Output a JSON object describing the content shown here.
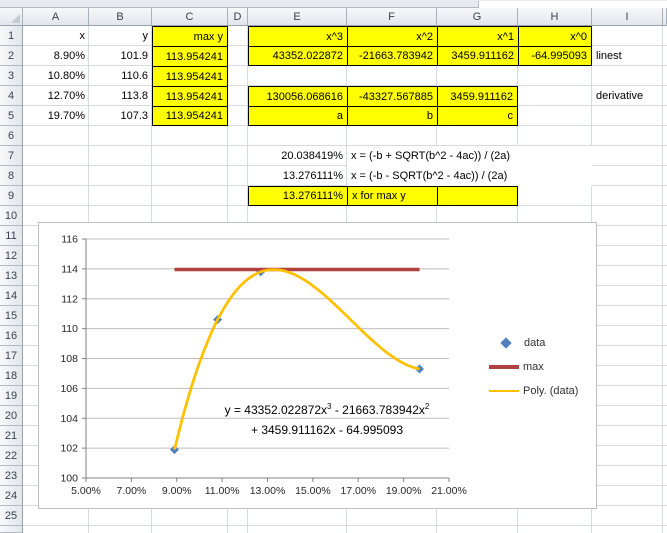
{
  "sheet": {
    "column_letters": [
      "",
      "A",
      "B",
      "C",
      "D",
      "E",
      "F",
      "G",
      "H",
      "I",
      ""
    ],
    "row_numbers": [
      "1",
      "2",
      "3",
      "4",
      "5",
      "6",
      "7",
      "8",
      "9",
      "10",
      "11",
      "12",
      "13",
      "14",
      "15",
      "16",
      "17",
      "18",
      "19",
      "20",
      "21",
      "22",
      "23",
      "24",
      "25",
      ""
    ],
    "cells": [
      {
        "r": 1,
        "c": "A",
        "v": "x",
        "a": "r"
      },
      {
        "r": 1,
        "c": "B",
        "v": "y",
        "a": "r"
      },
      {
        "r": 1,
        "c": "C",
        "v": "max y",
        "a": "r",
        "f": "y",
        "b": "tlr"
      },
      {
        "r": 1,
        "c": "E",
        "v": "x^3",
        "a": "r",
        "f": "y",
        "b": "tl"
      },
      {
        "r": 1,
        "c": "F",
        "v": "x^2",
        "a": "r",
        "f": "y",
        "b": "tl"
      },
      {
        "r": 1,
        "c": "G",
        "v": "x^1",
        "a": "r",
        "f": "y",
        "b": "tl"
      },
      {
        "r": 1,
        "c": "H",
        "v": "x^0",
        "a": "r",
        "f": "y",
        "b": "tlr"
      },
      {
        "r": 2,
        "c": "A",
        "v": "8.90%",
        "a": "r"
      },
      {
        "r": 2,
        "c": "B",
        "v": "101.9",
        "a": "r"
      },
      {
        "r": 2,
        "c": "C",
        "v": "113.954241",
        "a": "r",
        "f": "y",
        "b": "tlr"
      },
      {
        "r": 2,
        "c": "E",
        "v": "43352.022872",
        "a": "r",
        "f": "y",
        "b": "tlb"
      },
      {
        "r": 2,
        "c": "F",
        "v": "-21663.783942",
        "a": "r",
        "f": "y",
        "b": "tlb"
      },
      {
        "r": 2,
        "c": "G",
        "v": "3459.911162",
        "a": "r",
        "f": "y",
        "b": "tlb"
      },
      {
        "r": 2,
        "c": "H",
        "v": "-64.995093",
        "a": "r",
        "f": "y",
        "b": "tlrb"
      },
      {
        "r": 2,
        "c": "I",
        "v": "linest",
        "a": "l"
      },
      {
        "r": 3,
        "c": "A",
        "v": "10.80%",
        "a": "r"
      },
      {
        "r": 3,
        "c": "B",
        "v": "110.6",
        "a": "r"
      },
      {
        "r": 3,
        "c": "C",
        "v": "113.954241",
        "a": "r",
        "f": "y",
        "b": "tlr"
      },
      {
        "r": 4,
        "c": "A",
        "v": "12.70%",
        "a": "r"
      },
      {
        "r": 4,
        "c": "B",
        "v": "113.8",
        "a": "r"
      },
      {
        "r": 4,
        "c": "C",
        "v": "113.954241",
        "a": "r",
        "f": "y",
        "b": "tlr"
      },
      {
        "r": 4,
        "c": "E",
        "v": "130056.068616",
        "a": "r",
        "f": "y",
        "b": "tl"
      },
      {
        "r": 4,
        "c": "F",
        "v": "-43327.567885",
        "a": "r",
        "f": "y",
        "b": "tl"
      },
      {
        "r": 4,
        "c": "G",
        "v": "3459.911162",
        "a": "r",
        "f": "y",
        "b": "tlr"
      },
      {
        "r": 4,
        "c": "I",
        "v": "derivative",
        "a": "l"
      },
      {
        "r": 5,
        "c": "A",
        "v": "19.70%",
        "a": "r"
      },
      {
        "r": 5,
        "c": "B",
        "v": "107.3",
        "a": "r"
      },
      {
        "r": 5,
        "c": "C",
        "v": "113.954241",
        "a": "r",
        "f": "y",
        "b": "tlrb"
      },
      {
        "r": 5,
        "c": "E",
        "v": "a",
        "a": "r",
        "f": "y",
        "b": "tlb"
      },
      {
        "r": 5,
        "c": "F",
        "v": "b",
        "a": "r",
        "f": "y",
        "b": "tlb"
      },
      {
        "r": 5,
        "c": "G",
        "v": "c",
        "a": "r",
        "f": "y",
        "b": "tlrb"
      },
      {
        "r": 7,
        "c": "E",
        "v": "20.038419%",
        "a": "r"
      },
      {
        "r": 7,
        "c": "F",
        "v": "x = (-b + SQRT(b^2 - 4ac)) / (2a)",
        "a": "l",
        "wide": true
      },
      {
        "r": 8,
        "c": "E",
        "v": "13.276111%",
        "a": "r"
      },
      {
        "r": 8,
        "c": "F",
        "v": "x = (-b - SQRT(b^2 - 4ac)) / (2a)",
        "a": "l",
        "wide": true
      },
      {
        "r": 9,
        "c": "E",
        "v": "13.276111%",
        "a": "r",
        "f": "y",
        "b": "tlb"
      },
      {
        "r": 9,
        "c": "F",
        "v": "x for max y",
        "a": "l",
        "f": "y",
        "b": "tlb"
      },
      {
        "r": 9,
        "c": "G",
        "v": "",
        "a": "l",
        "f": "y",
        "b": "tlrb"
      }
    ]
  },
  "chart_data": {
    "type": "scatter",
    "x_axis": {
      "min": 0.05,
      "max": 0.21,
      "tick_step": 0.02,
      "labels": [
        "5.00%",
        "7.00%",
        "9.00%",
        "11.00%",
        "13.00%",
        "15.00%",
        "17.00%",
        "19.00%",
        "21.00%"
      ]
    },
    "y_axis": {
      "min": 100,
      "max": 116,
      "tick_step": 2,
      "labels": [
        "100",
        "102",
        "104",
        "106",
        "108",
        "110",
        "112",
        "114",
        "116"
      ]
    },
    "grid": "horizontal",
    "legend_position": "right",
    "series": [
      {
        "name": "data",
        "type": "scatter",
        "marker": "diamond",
        "color": "#4f81bd",
        "points": [
          [
            0.089,
            101.9
          ],
          [
            0.108,
            110.6
          ],
          [
            0.127,
            113.8
          ],
          [
            0.197,
            107.3
          ]
        ]
      },
      {
        "name": "max",
        "type": "hline",
        "color": "#b0413e",
        "y": 113.954241,
        "x_range": [
          0.089,
          0.197
        ]
      },
      {
        "name": "Poly. (data)",
        "type": "cubic-trendline",
        "color": "#ffc000",
        "coefficients": [
          43352.022872,
          -21663.783942,
          3459.911162,
          -64.995093
        ],
        "x_range": [
          0.089,
          0.197
        ]
      }
    ],
    "equation": {
      "l1a": "y = 43352.022872x",
      "l1sup1": "3",
      "l1b": " - 21663.783942x",
      "l1sup2": "2",
      "l2": "+ 3459.911162x - 64.995093"
    }
  }
}
